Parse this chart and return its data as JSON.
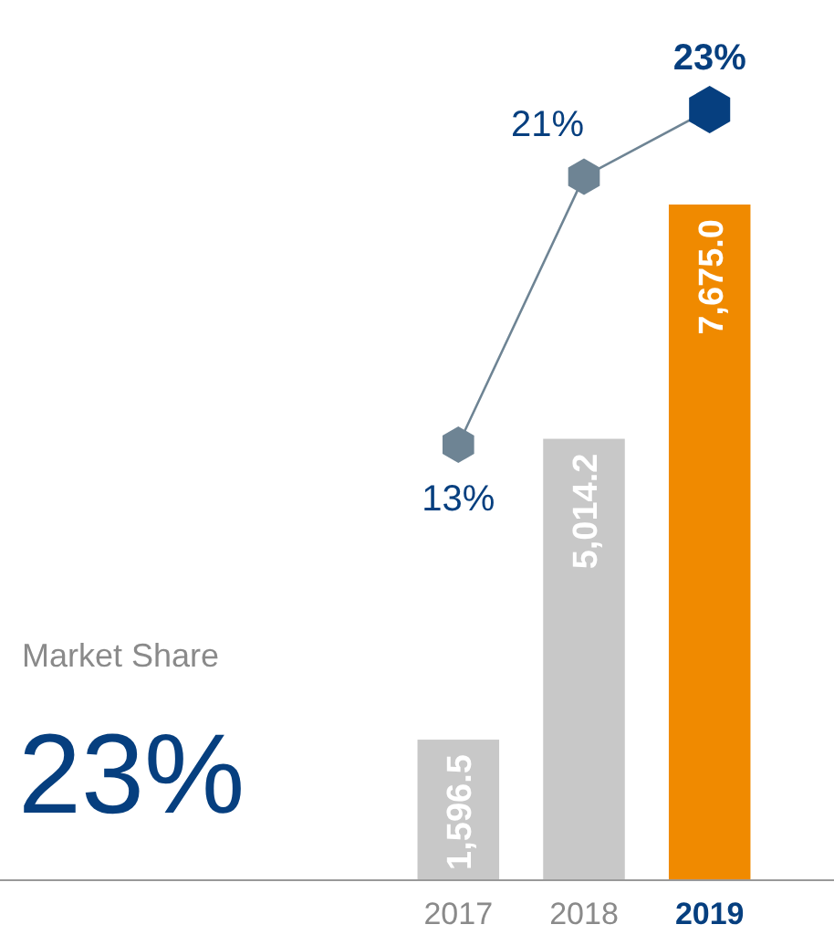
{
  "chart_data": {
    "type": "bar",
    "categories": [
      "2017",
      "2018",
      "2019"
    ],
    "series": [
      {
        "colors": [
          "#c8c8c8",
          "#c8c8c8",
          "#f08a00"
        ],
        "values": [
          1596.5,
          5014.2,
          7675.0
        ],
        "value_labels": [
          "1,596.5",
          "5,014.2",
          "7,675.0"
        ]
      },
      {
        "type": "line",
        "axis": "y2",
        "color": "#6e8494",
        "colors": [
          "#6e8494",
          "#6e8494",
          "#063f7f"
        ],
        "values": [
          13,
          21,
          23
        ],
        "value_labels": [
          "13%",
          "21%",
          "23%"
        ]
      }
    ],
    "annotations": [
      "Market Share",
      "23%"
    ]
  }
}
